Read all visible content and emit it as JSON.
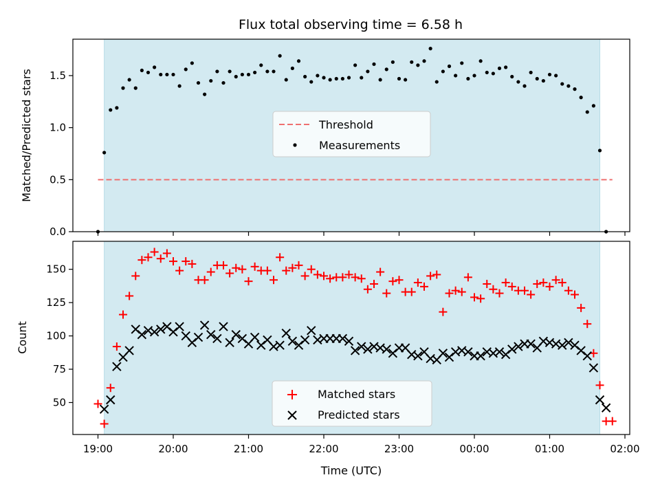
{
  "chart_data": {
    "title": "Flux total observing time = 6.58 h",
    "xlabel": "Time (UTC)",
    "x_ticks": [
      "19:00",
      "20:00",
      "21:00",
      "22:00",
      "23:00",
      "00:00",
      "01:00",
      "02:00"
    ],
    "shaded_span": {
      "start": "19:05",
      "end": "01:40",
      "color": "#d3eaf1"
    },
    "top": {
      "type": "scatter",
      "ylabel": "Matched/Predicted stars",
      "ylim": [
        0,
        1.85
      ],
      "y_ticks": [
        0.0,
        0.5,
        1.0,
        1.5
      ],
      "legend": {
        "placement": "center",
        "entries": [
          "Threshold",
          "Measurements"
        ]
      },
      "threshold": {
        "name": "Threshold",
        "value": 0.5,
        "x_range": [
          "19:00",
          "01:50"
        ],
        "color": "#ee7070"
      },
      "measurements": {
        "name": "Measurements",
        "color": "#000000",
        "points": [
          [
            "19:00",
            0.0
          ],
          [
            "19:05",
            0.76
          ],
          [
            "19:10",
            1.17
          ],
          [
            "19:15",
            1.19
          ],
          [
            "19:20",
            1.38
          ],
          [
            "19:25",
            1.46
          ],
          [
            "19:30",
            1.38
          ],
          [
            "19:35",
            1.55
          ],
          [
            "19:40",
            1.53
          ],
          [
            "19:45",
            1.58
          ],
          [
            "19:50",
            1.51
          ],
          [
            "19:55",
            1.51
          ],
          [
            "20:00",
            1.51
          ],
          [
            "20:05",
            1.4
          ],
          [
            "20:10",
            1.56
          ],
          [
            "20:15",
            1.62
          ],
          [
            "20:20",
            1.43
          ],
          [
            "20:25",
            1.32
          ],
          [
            "20:30",
            1.45
          ],
          [
            "20:35",
            1.54
          ],
          [
            "20:40",
            1.43
          ],
          [
            "20:45",
            1.54
          ],
          [
            "20:50",
            1.49
          ],
          [
            "20:55",
            1.51
          ],
          [
            "21:00",
            1.51
          ],
          [
            "21:05",
            1.53
          ],
          [
            "21:10",
            1.6
          ],
          [
            "21:15",
            1.54
          ],
          [
            "21:20",
            1.54
          ],
          [
            "21:25",
            1.69
          ],
          [
            "21:30",
            1.46
          ],
          [
            "21:35",
            1.57
          ],
          [
            "21:40",
            1.64
          ],
          [
            "21:45",
            1.49
          ],
          [
            "21:50",
            1.44
          ],
          [
            "21:55",
            1.5
          ],
          [
            "22:00",
            1.48
          ],
          [
            "22:05",
            1.46
          ],
          [
            "22:10",
            1.47
          ],
          [
            "22:15",
            1.47
          ],
          [
            "22:20",
            1.48
          ],
          [
            "22:25",
            1.6
          ],
          [
            "22:30",
            1.48
          ],
          [
            "22:35",
            1.54
          ],
          [
            "22:40",
            1.61
          ],
          [
            "22:45",
            1.46
          ],
          [
            "22:50",
            1.56
          ],
          [
            "22:55",
            1.63
          ],
          [
            "23:00",
            1.47
          ],
          [
            "23:05",
            1.46
          ],
          [
            "23:10",
            1.63
          ],
          [
            "23:15",
            1.6
          ],
          [
            "23:20",
            1.64
          ],
          [
            "23:25",
            1.76
          ],
          [
            "23:30",
            1.44
          ],
          [
            "23:35",
            1.54
          ],
          [
            "23:40",
            1.59
          ],
          [
            "23:45",
            1.5
          ],
          [
            "23:50",
            1.62
          ],
          [
            "23:55",
            1.47
          ],
          [
            "00:00",
            1.5
          ],
          [
            "00:05",
            1.64
          ],
          [
            "00:10",
            1.53
          ],
          [
            "00:15",
            1.52
          ],
          [
            "00:20",
            1.57
          ],
          [
            "00:25",
            1.58
          ],
          [
            "00:30",
            1.49
          ],
          [
            "00:35",
            1.44
          ],
          [
            "00:40",
            1.4
          ],
          [
            "00:45",
            1.53
          ],
          [
            "00:50",
            1.47
          ],
          [
            "00:55",
            1.45
          ],
          [
            "01:00",
            1.51
          ],
          [
            "01:05",
            1.5
          ],
          [
            "01:10",
            1.42
          ],
          [
            "01:15",
            1.4
          ],
          [
            "01:20",
            1.37
          ],
          [
            "01:25",
            1.29
          ],
          [
            "01:30",
            1.15
          ],
          [
            "01:35",
            1.21
          ],
          [
            "01:40",
            0.78
          ],
          [
            "01:45",
            0.0
          ]
        ]
      }
    },
    "bottom": {
      "type": "scatter",
      "ylabel": "Count",
      "ylim": [
        26,
        171
      ],
      "y_ticks": [
        50,
        75,
        100,
        125,
        150
      ],
      "legend": {
        "placement": "bottom-center",
        "entries": [
          "Matched stars",
          "Predicted stars"
        ]
      },
      "matched": {
        "name": "Matched stars",
        "color": "#ff0000",
        "points": [
          [
            "19:00",
            49
          ],
          [
            "19:05",
            34
          ],
          [
            "19:10",
            61
          ],
          [
            "19:15",
            92
          ],
          [
            "19:20",
            116
          ],
          [
            "19:25",
            130
          ],
          [
            "19:30",
            145
          ],
          [
            "19:35",
            157
          ],
          [
            "19:40",
            159
          ],
          [
            "19:45",
            163
          ],
          [
            "19:50",
            158
          ],
          [
            "19:55",
            162
          ],
          [
            "20:00",
            156
          ],
          [
            "20:05",
            149
          ],
          [
            "20:10",
            156
          ],
          [
            "20:15",
            154
          ],
          [
            "20:20",
            142
          ],
          [
            "20:25",
            142
          ],
          [
            "20:30",
            148
          ],
          [
            "20:35",
            153
          ],
          [
            "20:40",
            153
          ],
          [
            "20:45",
            147
          ],
          [
            "20:50",
            151
          ],
          [
            "20:55",
            150
          ],
          [
            "21:00",
            141
          ],
          [
            "21:05",
            152
          ],
          [
            "21:10",
            149
          ],
          [
            "21:15",
            149
          ],
          [
            "21:20",
            142
          ],
          [
            "21:25",
            159
          ],
          [
            "21:30",
            149
          ],
          [
            "21:35",
            151
          ],
          [
            "21:40",
            153
          ],
          [
            "21:45",
            145
          ],
          [
            "21:50",
            150
          ],
          [
            "21:55",
            146
          ],
          [
            "22:00",
            145
          ],
          [
            "22:05",
            143
          ],
          [
            "22:10",
            144
          ],
          [
            "22:15",
            144
          ],
          [
            "22:20",
            146
          ],
          [
            "22:25",
            144
          ],
          [
            "22:30",
            143
          ],
          [
            "22:35",
            135
          ],
          [
            "22:40",
            139
          ],
          [
            "22:45",
            148
          ],
          [
            "22:50",
            132
          ],
          [
            "22:55",
            141
          ],
          [
            "23:00",
            142
          ],
          [
            "23:05",
            133
          ],
          [
            "23:10",
            133
          ],
          [
            "23:15",
            140
          ],
          [
            "23:20",
            137
          ],
          [
            "23:25",
            145
          ],
          [
            "23:30",
            146
          ],
          [
            "23:35",
            118
          ],
          [
            "23:40",
            132
          ],
          [
            "23:45",
            134
          ],
          [
            "23:50",
            133
          ],
          [
            "23:55",
            144
          ],
          [
            "00:00",
            129
          ],
          [
            "00:05",
            128
          ],
          [
            "00:10",
            139
          ],
          [
            "00:15",
            135
          ],
          [
            "00:20",
            132
          ],
          [
            "00:25",
            140
          ],
          [
            "00:30",
            137
          ],
          [
            "00:35",
            134
          ],
          [
            "00:40",
            134
          ],
          [
            "00:45",
            131
          ],
          [
            "00:50",
            139
          ],
          [
            "00:55",
            140
          ],
          [
            "01:00",
            137
          ],
          [
            "01:05",
            142
          ],
          [
            "01:10",
            140
          ],
          [
            "01:15",
            134
          ],
          [
            "01:20",
            131
          ],
          [
            "01:25",
            121
          ],
          [
            "01:30",
            109
          ],
          [
            "01:35",
            87
          ],
          [
            "01:40",
            63
          ],
          [
            "01:45",
            36
          ],
          [
            "01:50",
            36
          ]
        ]
      },
      "predicted": {
        "name": "Predicted stars",
        "color": "#000000",
        "points": [
          [
            "19:05",
            45
          ],
          [
            "19:10",
            52
          ],
          [
            "19:15",
            77
          ],
          [
            "19:20",
            84
          ],
          [
            "19:25",
            89
          ],
          [
            "19:30",
            105
          ],
          [
            "19:35",
            101
          ],
          [
            "19:40",
            104
          ],
          [
            "19:45",
            103
          ],
          [
            "19:50",
            105
          ],
          [
            "19:55",
            107
          ],
          [
            "20:00",
            103
          ],
          [
            "20:05",
            107
          ],
          [
            "20:10",
            100
          ],
          [
            "20:15",
            95
          ],
          [
            "20:20",
            99
          ],
          [
            "20:25",
            108
          ],
          [
            "20:30",
            101
          ],
          [
            "20:35",
            98
          ],
          [
            "20:40",
            107
          ],
          [
            "20:45",
            95
          ],
          [
            "20:50",
            101
          ],
          [
            "20:55",
            98
          ],
          [
            "21:00",
            94
          ],
          [
            "21:05",
            99
          ],
          [
            "21:10",
            93
          ],
          [
            "21:15",
            97
          ],
          [
            "21:20",
            92
          ],
          [
            "21:25",
            93
          ],
          [
            "21:30",
            102
          ],
          [
            "21:35",
            96
          ],
          [
            "21:40",
            93
          ],
          [
            "21:45",
            97
          ],
          [
            "21:50",
            104
          ],
          [
            "21:55",
            97
          ],
          [
            "22:00",
            98
          ],
          [
            "22:05",
            98
          ],
          [
            "22:10",
            98
          ],
          [
            "22:15",
            98
          ],
          [
            "22:20",
            96
          ],
          [
            "22:25",
            89
          ],
          [
            "22:30",
            92
          ],
          [
            "22:35",
            90
          ],
          [
            "22:40",
            92
          ],
          [
            "22:45",
            91
          ],
          [
            "22:50",
            90
          ],
          [
            "22:55",
            87
          ],
          [
            "23:00",
            91
          ],
          [
            "23:05",
            91
          ],
          [
            "23:10",
            86
          ],
          [
            "23:15",
            85
          ],
          [
            "23:20",
            88
          ],
          [
            "23:25",
            83
          ],
          [
            "23:30",
            82
          ],
          [
            "23:35",
            87
          ],
          [
            "23:40",
            84
          ],
          [
            "23:45",
            88
          ],
          [
            "23:50",
            89
          ],
          [
            "23:55",
            88
          ],
          [
            "00:00",
            85
          ],
          [
            "00:05",
            85
          ],
          [
            "00:10",
            88
          ],
          [
            "00:15",
            87
          ],
          [
            "00:20",
            88
          ],
          [
            "00:25",
            86
          ],
          [
            "00:30",
            90
          ],
          [
            "00:35",
            92
          ],
          [
            "00:40",
            94
          ],
          [
            "00:45",
            94
          ],
          [
            "00:50",
            91
          ],
          [
            "00:55",
            96
          ],
          [
            "01:00",
            95
          ],
          [
            "01:05",
            94
          ],
          [
            "01:10",
            93
          ],
          [
            "01:15",
            95
          ],
          [
            "01:20",
            93
          ],
          [
            "01:25",
            89
          ],
          [
            "01:30",
            85
          ],
          [
            "01:35",
            76
          ],
          [
            "01:40",
            52
          ],
          [
            "01:45",
            46
          ]
        ]
      }
    }
  }
}
